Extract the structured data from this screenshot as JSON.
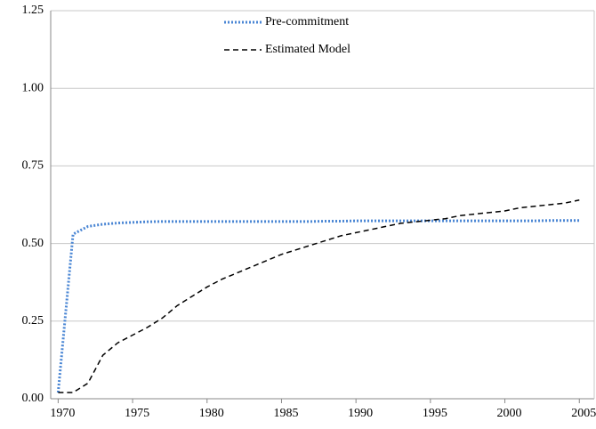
{
  "chart_data": {
    "type": "line",
    "x": [
      1970,
      1971,
      1972,
      1973,
      1974,
      1975,
      1976,
      1977,
      1978,
      1979,
      1980,
      1981,
      1982,
      1983,
      1984,
      1985,
      1986,
      1987,
      1988,
      1989,
      1990,
      1991,
      1992,
      1993,
      1994,
      1995,
      1996,
      1997,
      1998,
      1999,
      2000,
      2001,
      2002,
      2003,
      2004,
      2005
    ],
    "series": [
      {
        "name": "Pre-commitment",
        "color": "#4a86d4",
        "dash": "dotted",
        "values": [
          0.02,
          0.53,
          0.555,
          0.562,
          0.566,
          0.568,
          0.57,
          0.571,
          0.571,
          0.571,
          0.571,
          0.571,
          0.571,
          0.571,
          0.571,
          0.571,
          0.571,
          0.571,
          0.572,
          0.572,
          0.573,
          0.573,
          0.573,
          0.573,
          0.573,
          0.573,
          0.573,
          0.573,
          0.573,
          0.573,
          0.573,
          0.573,
          0.573,
          0.574,
          0.574,
          0.574
        ]
      },
      {
        "name": "Estimated Model",
        "color": "#000000",
        "dash": "dashed",
        "values": [
          0.02,
          0.02,
          0.05,
          0.14,
          0.18,
          0.205,
          0.23,
          0.26,
          0.3,
          0.33,
          0.36,
          0.385,
          0.405,
          0.425,
          0.445,
          0.465,
          0.48,
          0.495,
          0.51,
          0.525,
          0.535,
          0.545,
          0.555,
          0.565,
          0.57,
          0.575,
          0.58,
          0.59,
          0.595,
          0.6,
          0.605,
          0.615,
          0.62,
          0.625,
          0.63,
          0.64
        ]
      }
    ],
    "xlim": [
      1969.5,
      2006
    ],
    "xticks": [
      1970,
      1975,
      1980,
      1985,
      1990,
      1995,
      2000,
      2005
    ],
    "ylim": [
      0,
      1.25
    ],
    "yticks": [
      {
        "value": 0,
        "label": "0.00"
      },
      {
        "value": 0.25,
        "label": "0.25"
      },
      {
        "value": 0.5,
        "label": "0.50"
      },
      {
        "value": 0.75,
        "label": "0.75"
      },
      {
        "value": 1,
        "label": "1.00"
      },
      {
        "value": 1.25,
        "label": "1.25"
      }
    ],
    "grid": true,
    "legend": "top"
  }
}
